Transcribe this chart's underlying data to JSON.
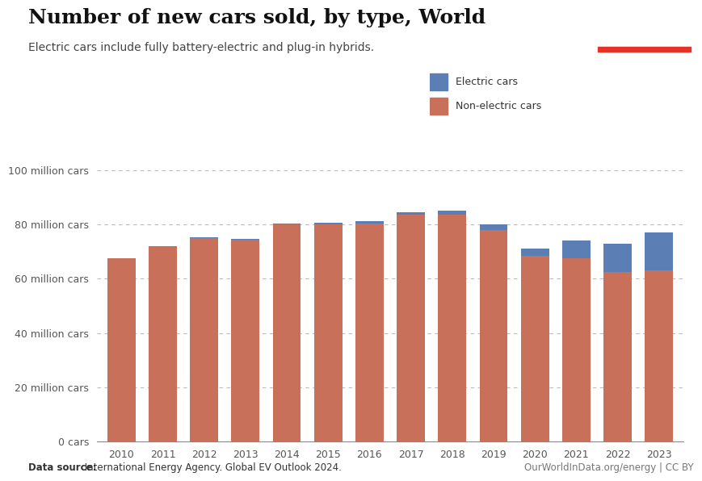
{
  "title": "Number of new cars sold, by type, World",
  "subtitle": "Electric cars include fully battery-electric and plug-in hybrids.",
  "years": [
    2010,
    2011,
    2012,
    2013,
    2014,
    2015,
    2016,
    2017,
    2018,
    2019,
    2020,
    2021,
    2022,
    2023
  ],
  "non_electric": [
    67.5,
    72.0,
    75.0,
    74.5,
    80.0,
    80.0,
    80.5,
    83.5,
    83.5,
    78.0,
    68.5,
    67.5,
    62.5,
    63.0
  ],
  "electric": [
    0.09,
    0.12,
    0.2,
    0.3,
    0.4,
    0.55,
    0.75,
    1.1,
    1.5,
    2.1,
    2.5,
    6.5,
    10.3,
    14.0
  ],
  "non_electric_color": "#c87059",
  "electric_color": "#5b7fb5",
  "background_color": "#ffffff",
  "ylim": [
    0,
    100
  ],
  "yticks": [
    0,
    20,
    40,
    60,
    80,
    100
  ],
  "ytick_labels": [
    "0 cars",
    "20 million cars",
    "40 million cars",
    "60 million cars",
    "80 million cars",
    "100 million cars"
  ],
  "datasource_bold": "Data source:",
  "datasource_rest": " International Energy Agency. Global EV Outlook 2024.",
  "attribution": "OurWorldInData.org/energy | CC BY",
  "logo_bg": "#1d3557",
  "logo_red": "#e63329"
}
